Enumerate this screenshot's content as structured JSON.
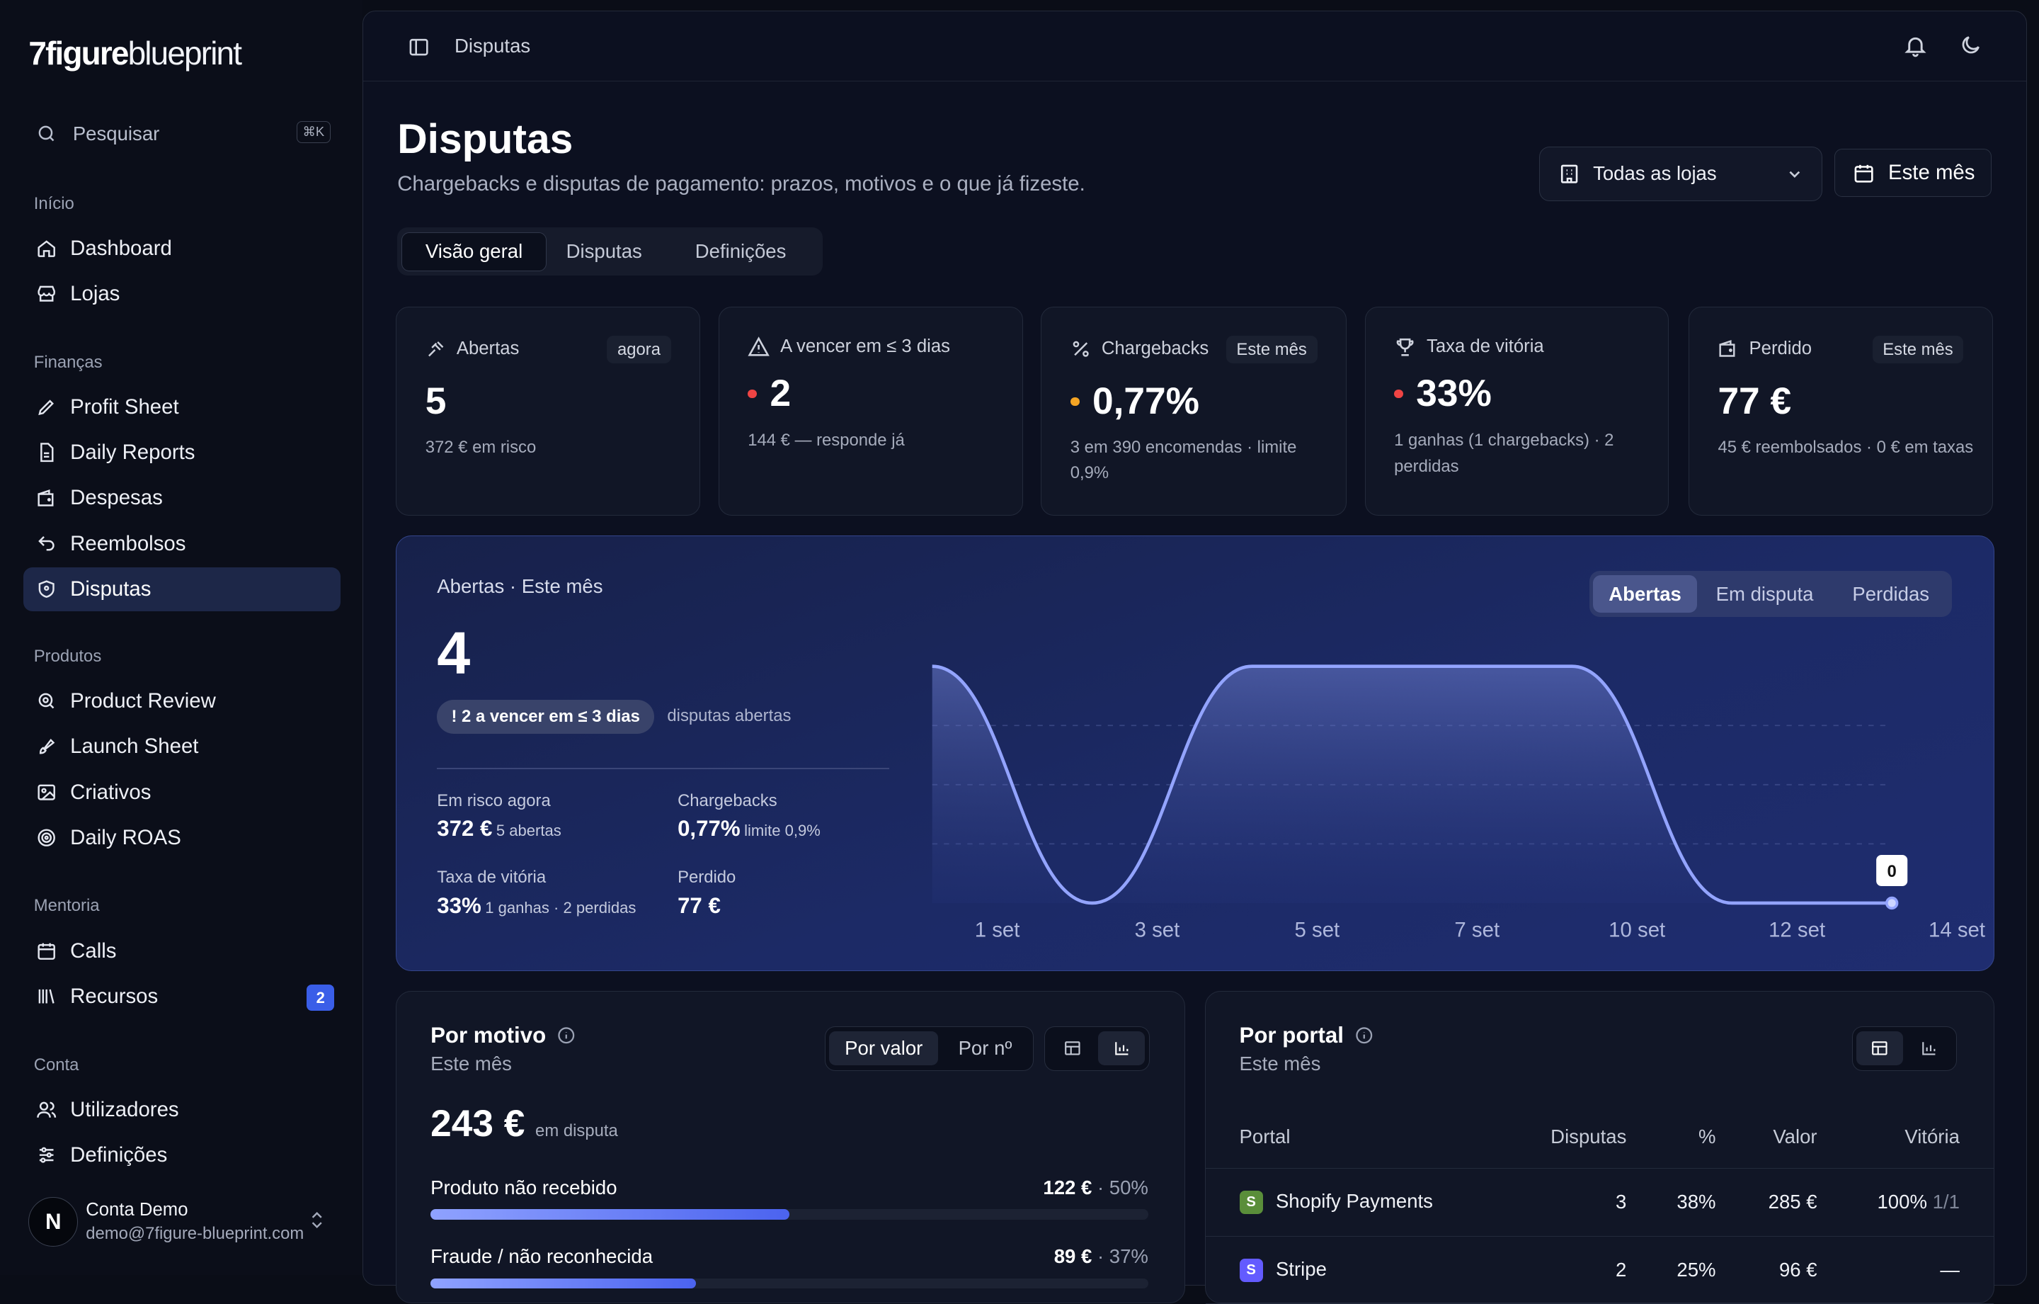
{
  "logo": {
    "bold": "7figure",
    "light": "blueprint"
  },
  "search": {
    "label": "Pesquisar",
    "shortcut": "⌘K"
  },
  "sidebar": {
    "sections": [
      {
        "title": "Início",
        "items": [
          {
            "label": "Dashboard",
            "icon": "home-icon"
          },
          {
            "label": "Lojas",
            "icon": "store-icon"
          }
        ]
      },
      {
        "title": "Finanças",
        "items": [
          {
            "label": "Profit Sheet",
            "icon": "pencil-icon"
          },
          {
            "label": "Daily Reports",
            "icon": "file-icon"
          },
          {
            "label": "Despesas",
            "icon": "wallet-icon"
          },
          {
            "label": "Reembolsos",
            "icon": "undo-icon"
          },
          {
            "label": "Disputas",
            "icon": "shield-icon",
            "active": true
          }
        ]
      },
      {
        "title": "Produtos",
        "items": [
          {
            "label": "Product Review",
            "icon": "search-zoom-icon"
          },
          {
            "label": "Launch Sheet",
            "icon": "rocket-icon"
          },
          {
            "label": "Criativos",
            "icon": "image-icon"
          },
          {
            "label": "Daily ROAS",
            "icon": "target-icon"
          }
        ]
      },
      {
        "title": "Mentoria",
        "items": [
          {
            "label": "Calls",
            "icon": "calendar-icon"
          },
          {
            "label": "Recursos",
            "icon": "library-icon",
            "badge": "2"
          }
        ]
      },
      {
        "title": "Conta",
        "items": [
          {
            "label": "Utilizadores",
            "icon": "users-icon"
          },
          {
            "label": "Definições",
            "icon": "sliders-icon"
          }
        ]
      }
    ]
  },
  "user": {
    "initial": "N",
    "name": "Conta Demo",
    "email": "demo@7figure-blueprint.com"
  },
  "topbar": {
    "breadcrumb": "Disputas"
  },
  "page": {
    "title": "Disputas",
    "subtitle": "Chargebacks e disputas de pagamento: prazos, motivos e o que já fizeste."
  },
  "filters": {
    "store": "Todas as lojas",
    "period": "Este mês"
  },
  "tabs": [
    "Visão geral",
    "Disputas",
    "Definições"
  ],
  "kpis": [
    {
      "label": "Abertas",
      "pill": "agora",
      "value": "5",
      "sub": "372 € em risco",
      "icon": "gavel-icon"
    },
    {
      "label": "A vencer em ≤ 3 dias",
      "value": "2",
      "sub": "144 € — responde já",
      "dot": "#ef4444",
      "icon": "alert-triangle-icon"
    },
    {
      "label": "Chargebacks",
      "pill": "Este mês",
      "value": "0,77%",
      "sub": "3 em 390 encomendas · limite 0,9%",
      "dot": "#f5a524",
      "icon": "percent-icon"
    },
    {
      "label": "Taxa de vitória",
      "value": "33%",
      "sub": "1 ganhas (1 chargebacks) · 2 perdidas",
      "dot": "#ef4444",
      "icon": "trophy-icon"
    },
    {
      "label": "Perdido",
      "pill": "Este mês",
      "value": "77 €",
      "sub": "45 € reembolsados · 0 € em taxas",
      "icon": "wallet-icon"
    }
  ],
  "hero": {
    "caption": "Abertas · Este mês",
    "value": "4",
    "warning": "! 2 a vencer em ≤ 3 dias",
    "warning_note": "disputas abertas",
    "stats": [
      {
        "label": "Em risco agora",
        "value": "372 €",
        "note": "5 abertas"
      },
      {
        "label": "Chargebacks",
        "value": "0,77%",
        "note": "limite 0,9%"
      },
      {
        "label": "Taxa de vitória",
        "value": "33%",
        "note": "1 ganhas · 2 perdidas"
      },
      {
        "label": "Perdido",
        "value": "77 €",
        "note": ""
      }
    ],
    "segments": [
      "Abertas",
      "Em disputa",
      "Perdidas"
    ],
    "tooltip": "0"
  },
  "chart_data": {
    "type": "area",
    "x_ticks": [
      "1 set",
      "3 set",
      "5 set",
      "7 set",
      "10 set",
      "12 set",
      "14 set"
    ],
    "series": [
      {
        "values": [
          4,
          0,
          4,
          4,
          4,
          0,
          0
        ]
      }
    ],
    "grid": true
  },
  "reasons_panel": {
    "title": "Por motivo",
    "subtitle": "Este mês",
    "toggle": [
      "Por valor",
      "Por nº"
    ],
    "total": "243 €",
    "total_note": "em disputa",
    "rows": [
      {
        "name": "Produto não recebido",
        "value": "122 €",
        "pct": "50%",
        "share": 0.5
      },
      {
        "name": "Fraude / não reconhecida",
        "value": "89 €",
        "pct": "37%",
        "share": 0.37
      }
    ]
  },
  "portal_panel": {
    "title": "Por portal",
    "subtitle": "Este mês",
    "columns": [
      "Portal",
      "Disputas",
      "%",
      "Valor",
      "Vitória"
    ],
    "rows": [
      {
        "portal": "Shopify Payments",
        "logo": "S",
        "color": "#5a8e3a",
        "disputes": "3",
        "pct": "38%",
        "value": "285 €",
        "win": "100%",
        "win_detail": "1/1"
      },
      {
        "portal": "Stripe",
        "logo": "S",
        "color": "#635bff",
        "disputes": "2",
        "pct": "25%",
        "value": "96 €",
        "win": "—",
        "win_detail": ""
      }
    ]
  }
}
